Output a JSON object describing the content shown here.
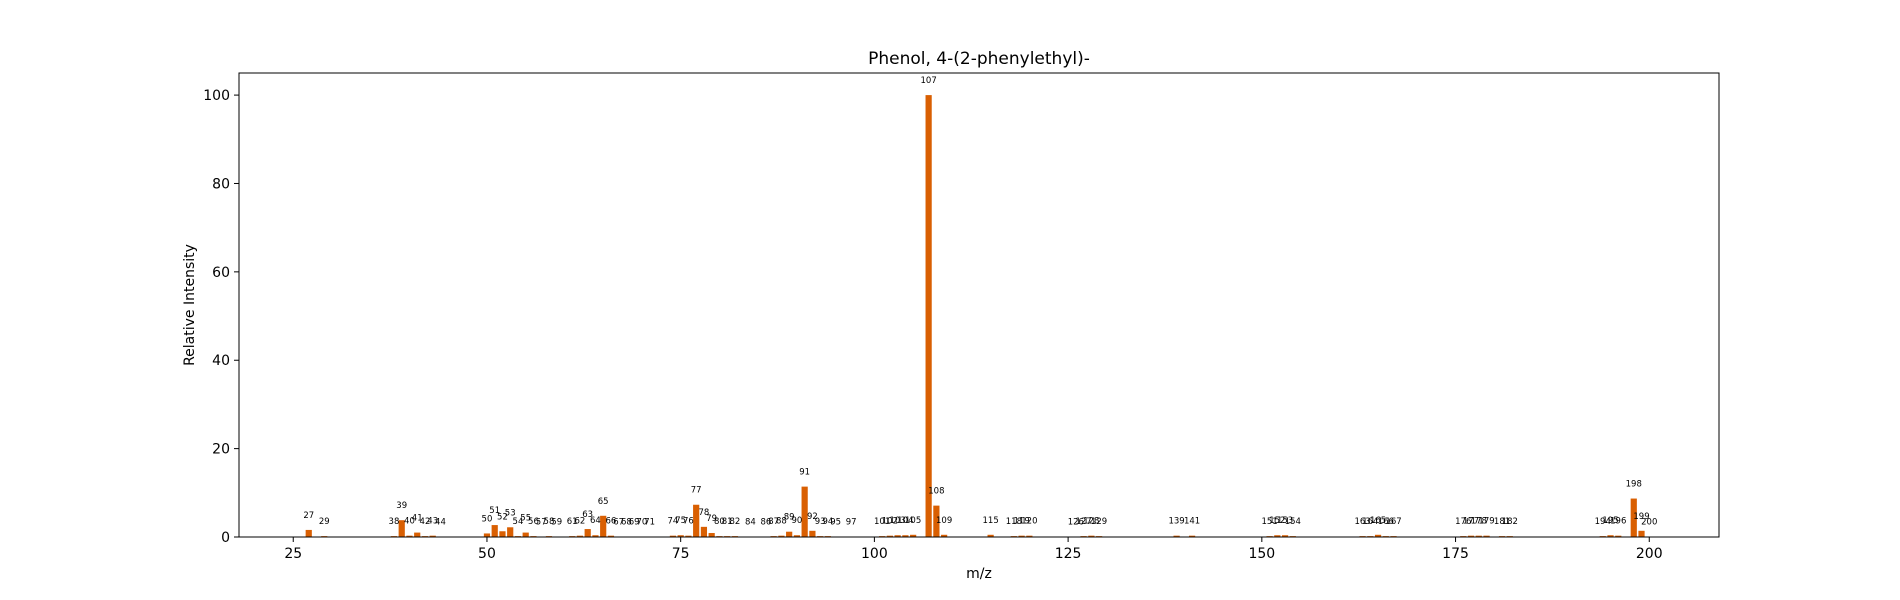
{
  "chart_data": {
    "type": "bar",
    "title": "Phenol, 4-(2-phenylethyl)-",
    "xlabel": "m/z",
    "ylabel": "Relative Intensity",
    "xlim": [
      18,
      209
    ],
    "ylim": [
      0,
      105
    ],
    "xticks": [
      25,
      50,
      75,
      100,
      125,
      150,
      175,
      200
    ],
    "yticks": [
      0,
      20,
      40,
      60,
      80,
      100
    ],
    "grid": false,
    "bar_color": "#d95f02",
    "x": [
      27,
      29,
      38,
      39,
      40,
      41,
      42,
      43,
      44,
      50,
      51,
      52,
      53,
      54,
      55,
      56,
      57,
      58,
      59,
      61,
      62,
      63,
      64,
      65,
      66,
      67,
      68,
      69,
      70,
      71,
      74,
      75,
      76,
      77,
      78,
      79,
      80,
      81,
      82,
      84,
      86,
      87,
      88,
      89,
      90,
      91,
      92,
      93,
      94,
      95,
      97,
      101,
      102,
      103,
      104,
      105,
      107,
      108,
      109,
      115,
      118,
      119,
      120,
      126,
      127,
      128,
      129,
      139,
      141,
      151,
      152,
      153,
      154,
      163,
      164,
      165,
      166,
      167,
      176,
      177,
      178,
      179,
      181,
      182,
      194,
      195,
      196,
      198,
      199,
      200
    ],
    "values": [
      1.6,
      0.2,
      0.2,
      3.8,
      0.3,
      1.0,
      0.2,
      0.3,
      0.1,
      0.8,
      2.7,
      1.3,
      2.2,
      0.2,
      1.0,
      0.2,
      0.1,
      0.2,
      0.1,
      0.2,
      0.3,
      1.8,
      0.4,
      4.8,
      0.3,
      0.1,
      0.1,
      0.1,
      0.1,
      0.1,
      0.3,
      0.4,
      0.3,
      7.3,
      2.3,
      0.9,
      0.2,
      0.2,
      0.2,
      0.1,
      0.1,
      0.2,
      0.3,
      1.2,
      0.4,
      11.4,
      1.4,
      0.2,
      0.2,
      0.1,
      0.1,
      0.2,
      0.3,
      0.4,
      0.4,
      0.5,
      100,
      7.1,
      0.5,
      0.5,
      0.2,
      0.3,
      0.3,
      0.1,
      0.2,
      0.3,
      0.2,
      0.3,
      0.3,
      0.2,
      0.4,
      0.4,
      0.2,
      0.2,
      0.2,
      0.5,
      0.2,
      0.2,
      0.2,
      0.3,
      0.3,
      0.3,
      0.2,
      0.2,
      0.2,
      0.4,
      0.3,
      8.7,
      1.4,
      0.1
    ]
  }
}
